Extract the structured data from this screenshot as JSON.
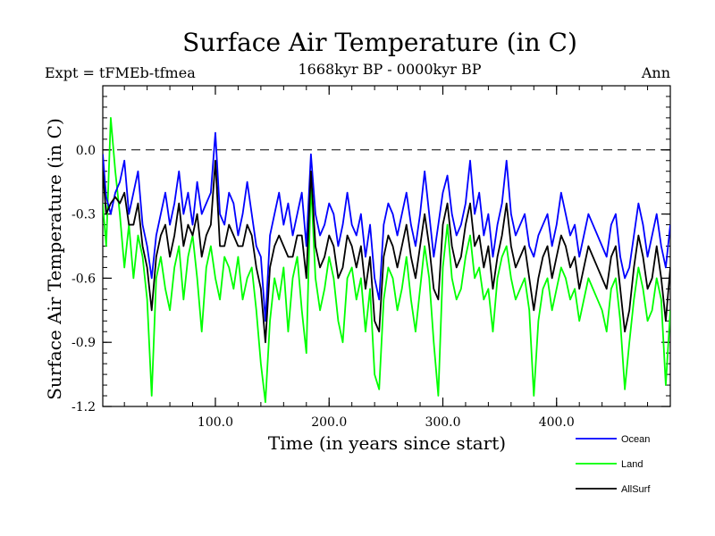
{
  "chart_data": {
    "type": "line",
    "title": "Surface Air Temperature (in C)",
    "subtitle": "1668kyr BP - 0000kyr BP",
    "experiment_label": "Expt = tFMEb-tfmea",
    "season_label": "Ann",
    "xlabel": "Time (in years since start)",
    "ylabel": "Surface Air Temperature (in C)",
    "xlim": [
      1,
      500
    ],
    "ylim": [
      -1.2,
      0.3
    ],
    "x_ticks": [
      100,
      200,
      300,
      400
    ],
    "x_tick_labels": [
      "100.0",
      "200.0",
      "300.0",
      "400.0"
    ],
    "y_ticks": [
      0.0,
      -0.3,
      -0.6,
      -0.9,
      -1.2
    ],
    "y_tick_labels": [
      "0.0",
      "-0.3",
      "-0.6",
      "-0.9",
      "-1.2"
    ],
    "reference_line": 0.0,
    "grid": false,
    "legend_position": "bottom-right",
    "x": [
      1,
      4,
      8,
      12,
      16,
      20,
      24,
      28,
      32,
      36,
      40,
      44,
      48,
      52,
      56,
      60,
      64,
      68,
      72,
      76,
      80,
      84,
      88,
      92,
      96,
      100,
      104,
      108,
      112,
      116,
      120,
      124,
      128,
      132,
      136,
      140,
      144,
      148,
      152,
      156,
      160,
      164,
      168,
      172,
      176,
      180,
      184,
      188,
      192,
      196,
      200,
      204,
      208,
      212,
      216,
      220,
      224,
      228,
      232,
      236,
      240,
      244,
      248,
      252,
      256,
      260,
      264,
      268,
      272,
      276,
      280,
      284,
      288,
      292,
      296,
      300,
      304,
      308,
      312,
      316,
      320,
      324,
      328,
      332,
      336,
      340,
      344,
      348,
      352,
      356,
      360,
      364,
      368,
      372,
      376,
      380,
      384,
      388,
      392,
      396,
      400,
      404,
      408,
      412,
      416,
      420,
      424,
      428,
      432,
      436,
      440,
      444,
      448,
      452,
      456,
      460,
      464,
      468,
      472,
      476,
      480,
      484,
      488,
      492,
      496,
      500
    ],
    "series": [
      {
        "name": "Ocean",
        "color": "#0000ff",
        "values": [
          -0.02,
          -0.22,
          -0.3,
          -0.2,
          -0.15,
          -0.05,
          -0.3,
          -0.2,
          -0.1,
          -0.35,
          -0.45,
          -0.6,
          -0.4,
          -0.3,
          -0.2,
          -0.35,
          -0.25,
          -0.1,
          -0.3,
          -0.2,
          -0.35,
          -0.15,
          -0.3,
          -0.25,
          -0.2,
          0.08,
          -0.3,
          -0.35,
          -0.2,
          -0.25,
          -0.4,
          -0.3,
          -0.15,
          -0.3,
          -0.45,
          -0.5,
          -0.8,
          -0.4,
          -0.3,
          -0.2,
          -0.35,
          -0.25,
          -0.4,
          -0.3,
          -0.2,
          -0.45,
          -0.02,
          -0.3,
          -0.4,
          -0.35,
          -0.25,
          -0.3,
          -0.45,
          -0.35,
          -0.2,
          -0.35,
          -0.4,
          -0.3,
          -0.5,
          -0.35,
          -0.6,
          -0.7,
          -0.35,
          -0.25,
          -0.3,
          -0.4,
          -0.3,
          -0.2,
          -0.35,
          -0.45,
          -0.3,
          -0.1,
          -0.3,
          -0.5,
          -0.35,
          -0.2,
          -0.12,
          -0.3,
          -0.4,
          -0.35,
          -0.25,
          -0.05,
          -0.3,
          -0.2,
          -0.4,
          -0.3,
          -0.5,
          -0.35,
          -0.25,
          -0.05,
          -0.3,
          -0.4,
          -0.35,
          -0.3,
          -0.45,
          -0.5,
          -0.4,
          -0.35,
          -0.3,
          -0.45,
          -0.35,
          -0.2,
          -0.3,
          -0.4,
          -0.35,
          -0.5,
          -0.4,
          -0.3,
          -0.35,
          -0.4,
          -0.45,
          -0.5,
          -0.35,
          -0.3,
          -0.5,
          -0.6,
          -0.55,
          -0.4,
          -0.25,
          -0.35,
          -0.5,
          -0.4,
          -0.3,
          -0.45,
          -0.55,
          -0.35
        ]
      },
      {
        "name": "Land",
        "color": "#00ff00",
        "values": [
          -0.25,
          -0.45,
          0.15,
          -0.1,
          -0.3,
          -0.55,
          -0.35,
          -0.6,
          -0.4,
          -0.5,
          -0.7,
          -1.15,
          -0.6,
          -0.5,
          -0.65,
          -0.75,
          -0.55,
          -0.45,
          -0.7,
          -0.5,
          -0.4,
          -0.6,
          -0.85,
          -0.55,
          -0.45,
          -0.6,
          -0.7,
          -0.5,
          -0.55,
          -0.65,
          -0.5,
          -0.7,
          -0.6,
          -0.55,
          -0.75,
          -1.0,
          -1.18,
          -0.8,
          -0.6,
          -0.7,
          -0.55,
          -0.85,
          -0.6,
          -0.5,
          -0.75,
          -0.95,
          -0.15,
          -0.6,
          -0.75,
          -0.65,
          -0.5,
          -0.6,
          -0.8,
          -0.9,
          -0.6,
          -0.55,
          -0.7,
          -0.6,
          -0.85,
          -0.65,
          -1.05,
          -1.12,
          -0.7,
          -0.55,
          -0.6,
          -0.75,
          -0.65,
          -0.5,
          -0.7,
          -0.85,
          -0.65,
          -0.45,
          -0.6,
          -0.9,
          -1.15,
          -0.55,
          -0.35,
          -0.6,
          -0.7,
          -0.65,
          -0.5,
          -0.4,
          -0.6,
          -0.55,
          -0.7,
          -0.65,
          -0.85,
          -0.6,
          -0.5,
          -0.45,
          -0.6,
          -0.7,
          -0.65,
          -0.6,
          -0.75,
          -1.15,
          -0.8,
          -0.65,
          -0.6,
          -0.75,
          -0.65,
          -0.55,
          -0.6,
          -0.7,
          -0.65,
          -0.8,
          -0.7,
          -0.6,
          -0.65,
          -0.7,
          -0.75,
          -0.85,
          -0.65,
          -0.6,
          -0.8,
          -1.12,
          -0.9,
          -0.7,
          -0.55,
          -0.65,
          -0.8,
          -0.75,
          -0.6,
          -0.7,
          -1.1,
          -0.75
        ]
      },
      {
        "name": "AllSurf",
        "color": "#000000",
        "values": [
          -0.1,
          -0.3,
          -0.25,
          -0.22,
          -0.25,
          -0.2,
          -0.35,
          -0.35,
          -0.25,
          -0.45,
          -0.55,
          -0.75,
          -0.5,
          -0.4,
          -0.35,
          -0.5,
          -0.4,
          -0.25,
          -0.45,
          -0.35,
          -0.4,
          -0.3,
          -0.5,
          -0.4,
          -0.35,
          -0.05,
          -0.45,
          -0.45,
          -0.35,
          -0.4,
          -0.45,
          -0.45,
          -0.35,
          -0.4,
          -0.55,
          -0.65,
          -0.9,
          -0.55,
          -0.45,
          -0.4,
          -0.45,
          -0.5,
          -0.5,
          -0.4,
          -0.4,
          -0.6,
          -0.1,
          -0.45,
          -0.55,
          -0.5,
          -0.4,
          -0.45,
          -0.6,
          -0.55,
          -0.4,
          -0.45,
          -0.55,
          -0.45,
          -0.65,
          -0.5,
          -0.8,
          -0.85,
          -0.5,
          -0.4,
          -0.45,
          -0.55,
          -0.45,
          -0.35,
          -0.5,
          -0.6,
          -0.45,
          -0.3,
          -0.45,
          -0.65,
          -0.7,
          -0.35,
          -0.25,
          -0.45,
          -0.55,
          -0.5,
          -0.35,
          -0.25,
          -0.45,
          -0.4,
          -0.55,
          -0.45,
          -0.65,
          -0.5,
          -0.4,
          -0.25,
          -0.45,
          -0.55,
          -0.5,
          -0.45,
          -0.6,
          -0.75,
          -0.6,
          -0.5,
          -0.45,
          -0.6,
          -0.5,
          -0.4,
          -0.45,
          -0.55,
          -0.5,
          -0.65,
          -0.55,
          -0.45,
          -0.5,
          -0.55,
          -0.6,
          -0.65,
          -0.5,
          -0.45,
          -0.65,
          -0.85,
          -0.75,
          -0.55,
          -0.4,
          -0.5,
          -0.65,
          -0.6,
          -0.45,
          -0.6,
          -0.8,
          -0.55
        ]
      }
    ]
  }
}
